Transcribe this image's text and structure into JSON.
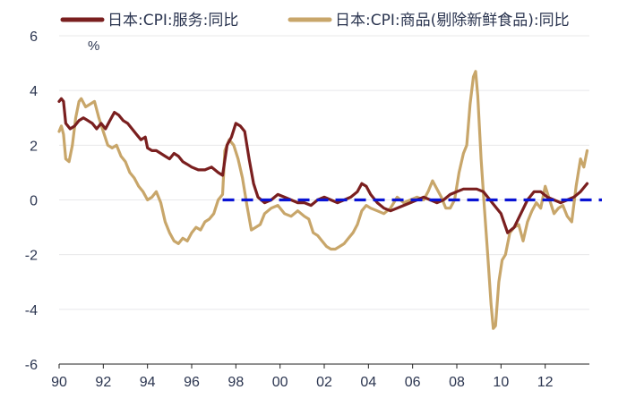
{
  "chart_data": {
    "type": "line",
    "unit_label": "%",
    "xlim": [
      1990,
      2014
    ],
    "ylim": [
      -6,
      6
    ],
    "y_ticks": [
      6,
      4,
      2,
      0,
      -2,
      -4,
      -6
    ],
    "x_tick_values": [
      1990,
      1992,
      1994,
      1996,
      1998,
      2000,
      2002,
      2004,
      2006,
      2008,
      2010,
      2012
    ],
    "x_tick_labels": [
      "90",
      "92",
      "94",
      "96",
      "98",
      "00",
      "02",
      "04",
      "06",
      "08",
      "10",
      "12"
    ],
    "grid": "horizontal",
    "legend_position": "top",
    "reference_line": {
      "y": 0,
      "x_start": 1997.4,
      "color": "#0a14d4",
      "style": "dashed"
    },
    "series": [
      {
        "name": "日本:CPI:服务:同比",
        "color": "#7a1f1f",
        "points": [
          [
            1990.0,
            3.6
          ],
          [
            1990.1,
            3.7
          ],
          [
            1990.2,
            3.6
          ],
          [
            1990.3,
            2.8
          ],
          [
            1990.5,
            2.6
          ],
          [
            1990.7,
            2.7
          ],
          [
            1990.9,
            2.9
          ],
          [
            1991.1,
            3.0
          ],
          [
            1991.3,
            2.9
          ],
          [
            1991.5,
            2.8
          ],
          [
            1991.7,
            2.6
          ],
          [
            1991.9,
            2.8
          ],
          [
            1992.1,
            2.6
          ],
          [
            1992.3,
            2.9
          ],
          [
            1992.5,
            3.2
          ],
          [
            1992.7,
            3.1
          ],
          [
            1992.9,
            2.9
          ],
          [
            1993.1,
            2.8
          ],
          [
            1993.3,
            2.6
          ],
          [
            1993.5,
            2.4
          ],
          [
            1993.7,
            2.2
          ],
          [
            1993.9,
            2.3
          ],
          [
            1994.0,
            1.9
          ],
          [
            1994.2,
            1.8
          ],
          [
            1994.4,
            1.8
          ],
          [
            1994.6,
            1.7
          ],
          [
            1994.8,
            1.6
          ],
          [
            1995.0,
            1.5
          ],
          [
            1995.2,
            1.7
          ],
          [
            1995.4,
            1.6
          ],
          [
            1995.6,
            1.4
          ],
          [
            1995.8,
            1.3
          ],
          [
            1996.0,
            1.2
          ],
          [
            1996.3,
            1.1
          ],
          [
            1996.6,
            1.1
          ],
          [
            1996.9,
            1.2
          ],
          [
            1997.2,
            1.0
          ],
          [
            1997.4,
            0.9
          ],
          [
            1997.6,
            2.0
          ],
          [
            1997.8,
            2.3
          ],
          [
            1998.0,
            2.8
          ],
          [
            1998.2,
            2.7
          ],
          [
            1998.4,
            2.5
          ],
          [
            1998.6,
            1.5
          ],
          [
            1998.8,
            0.6
          ],
          [
            1999.0,
            0.1
          ],
          [
            1999.3,
            -0.1
          ],
          [
            1999.6,
            0.0
          ],
          [
            1999.9,
            0.2
          ],
          [
            2000.2,
            0.1
          ],
          [
            2000.5,
            0.0
          ],
          [
            2000.8,
            -0.1
          ],
          [
            2001.1,
            -0.1
          ],
          [
            2001.4,
            -0.2
          ],
          [
            2001.7,
            0.0
          ],
          [
            2002.0,
            0.1
          ],
          [
            2002.3,
            0.0
          ],
          [
            2002.6,
            -0.1
          ],
          [
            2002.9,
            0.0
          ],
          [
            2003.2,
            0.1
          ],
          [
            2003.5,
            0.3
          ],
          [
            2003.7,
            0.6
          ],
          [
            2003.9,
            0.5
          ],
          [
            2004.1,
            0.2
          ],
          [
            2004.4,
            -0.1
          ],
          [
            2004.7,
            -0.3
          ],
          [
            2005.0,
            -0.4
          ],
          [
            2005.3,
            -0.3
          ],
          [
            2005.6,
            -0.2
          ],
          [
            2005.9,
            -0.1
          ],
          [
            2006.2,
            0.0
          ],
          [
            2006.5,
            0.1
          ],
          [
            2006.8,
            0.0
          ],
          [
            2007.1,
            -0.1
          ],
          [
            2007.4,
            0.0
          ],
          [
            2007.7,
            0.2
          ],
          [
            2008.0,
            0.3
          ],
          [
            2008.3,
            0.4
          ],
          [
            2008.6,
            0.4
          ],
          [
            2008.9,
            0.4
          ],
          [
            2009.2,
            0.3
          ],
          [
            2009.5,
            0.0
          ],
          [
            2009.8,
            -0.3
          ],
          [
            2010.0,
            -0.5
          ],
          [
            2010.3,
            -1.2
          ],
          [
            2010.6,
            -1.0
          ],
          [
            2010.9,
            -0.5
          ],
          [
            2011.2,
            0.0
          ],
          [
            2011.5,
            0.3
          ],
          [
            2011.8,
            0.3
          ],
          [
            2012.1,
            0.1
          ],
          [
            2012.4,
            0.0
          ],
          [
            2012.7,
            -0.1
          ],
          [
            2013.0,
            0.0
          ],
          [
            2013.3,
            0.1
          ],
          [
            2013.6,
            0.3
          ],
          [
            2013.9,
            0.6
          ]
        ]
      },
      {
        "name": "日本:CPI:商品(剔除新鲜食品):同比",
        "color": "#c8a66a",
        "points": [
          [
            1990.0,
            2.5
          ],
          [
            1990.1,
            2.7
          ],
          [
            1990.2,
            2.4
          ],
          [
            1990.3,
            1.5
          ],
          [
            1990.45,
            1.4
          ],
          [
            1990.6,
            2.0
          ],
          [
            1990.75,
            3.0
          ],
          [
            1990.9,
            3.6
          ],
          [
            1991.0,
            3.7
          ],
          [
            1991.2,
            3.4
          ],
          [
            1991.4,
            3.5
          ],
          [
            1991.6,
            3.6
          ],
          [
            1991.8,
            3.0
          ],
          [
            1992.0,
            2.5
          ],
          [
            1992.2,
            2.0
          ],
          [
            1992.4,
            1.9
          ],
          [
            1992.6,
            2.0
          ],
          [
            1992.8,
            1.6
          ],
          [
            1993.0,
            1.4
          ],
          [
            1993.2,
            1.0
          ],
          [
            1993.4,
            0.8
          ],
          [
            1993.6,
            0.5
          ],
          [
            1993.8,
            0.3
          ],
          [
            1994.0,
            0.0
          ],
          [
            1994.2,
            0.1
          ],
          [
            1994.4,
            0.3
          ],
          [
            1994.6,
            -0.1
          ],
          [
            1994.8,
            -0.8
          ],
          [
            1995.0,
            -1.2
          ],
          [
            1995.2,
            -1.5
          ],
          [
            1995.4,
            -1.6
          ],
          [
            1995.6,
            -1.4
          ],
          [
            1995.8,
            -1.5
          ],
          [
            1996.0,
            -1.2
          ],
          [
            1996.2,
            -1.0
          ],
          [
            1996.4,
            -1.1
          ],
          [
            1996.6,
            -0.8
          ],
          [
            1996.8,
            -0.7
          ],
          [
            1997.0,
            -0.5
          ],
          [
            1997.2,
            0.0
          ],
          [
            1997.4,
            0.2
          ],
          [
            1997.5,
            1.8
          ],
          [
            1997.7,
            2.2
          ],
          [
            1997.9,
            2.0
          ],
          [
            1998.1,
            1.5
          ],
          [
            1998.3,
            0.8
          ],
          [
            1998.5,
            -0.2
          ],
          [
            1998.7,
            -1.1
          ],
          [
            1998.9,
            -1.0
          ],
          [
            1999.1,
            -0.9
          ],
          [
            1999.3,
            -0.5
          ],
          [
            1999.6,
            -0.3
          ],
          [
            1999.9,
            -0.2
          ],
          [
            2000.2,
            -0.5
          ],
          [
            2000.5,
            -0.6
          ],
          [
            2000.8,
            -0.4
          ],
          [
            2001.1,
            -0.6
          ],
          [
            2001.3,
            -0.7
          ],
          [
            2001.5,
            -1.2
          ],
          [
            2001.7,
            -1.3
          ],
          [
            2001.9,
            -1.5
          ],
          [
            2002.1,
            -1.7
          ],
          [
            2002.3,
            -1.8
          ],
          [
            2002.5,
            -1.8
          ],
          [
            2002.7,
            -1.7
          ],
          [
            2002.9,
            -1.6
          ],
          [
            2003.1,
            -1.4
          ],
          [
            2003.3,
            -1.2
          ],
          [
            2003.5,
            -0.9
          ],
          [
            2003.7,
            -0.4
          ],
          [
            2003.9,
            -0.2
          ],
          [
            2004.1,
            -0.3
          ],
          [
            2004.4,
            -0.4
          ],
          [
            2004.7,
            -0.5
          ],
          [
            2005.0,
            -0.3
          ],
          [
            2005.3,
            0.1
          ],
          [
            2005.6,
            -0.1
          ],
          [
            2005.9,
            0.0
          ],
          [
            2006.2,
            0.1
          ],
          [
            2006.5,
            0.0
          ],
          [
            2006.7,
            0.3
          ],
          [
            2006.9,
            0.7
          ],
          [
            2007.1,
            0.4
          ],
          [
            2007.3,
            0.1
          ],
          [
            2007.5,
            -0.3
          ],
          [
            2007.7,
            -0.3
          ],
          [
            2007.9,
            0.0
          ],
          [
            2008.1,
            1.0
          ],
          [
            2008.3,
            1.7
          ],
          [
            2008.45,
            2.0
          ],
          [
            2008.6,
            3.5
          ],
          [
            2008.75,
            4.5
          ],
          [
            2008.85,
            4.7
          ],
          [
            2008.95,
            3.8
          ],
          [
            2009.1,
            1.5
          ],
          [
            2009.25,
            -0.3
          ],
          [
            2009.4,
            -2.0
          ],
          [
            2009.55,
            -3.8
          ],
          [
            2009.65,
            -4.7
          ],
          [
            2009.75,
            -4.6
          ],
          [
            2009.9,
            -3.0
          ],
          [
            2010.05,
            -2.2
          ],
          [
            2010.2,
            -2.0
          ],
          [
            2010.4,
            -1.2
          ],
          [
            2010.6,
            -1.0
          ],
          [
            2010.8,
            -0.9
          ],
          [
            2011.0,
            -1.5
          ],
          [
            2011.2,
            -0.8
          ],
          [
            2011.4,
            -0.4
          ],
          [
            2011.6,
            -0.1
          ],
          [
            2011.8,
            -0.3
          ],
          [
            2012.0,
            0.5
          ],
          [
            2012.2,
            0.0
          ],
          [
            2012.4,
            -0.5
          ],
          [
            2012.6,
            -0.3
          ],
          [
            2012.8,
            -0.2
          ],
          [
            2013.0,
            -0.6
          ],
          [
            2013.2,
            -0.8
          ],
          [
            2013.4,
            0.5
          ],
          [
            2013.6,
            1.5
          ],
          [
            2013.75,
            1.2
          ],
          [
            2013.9,
            1.8
          ]
        ]
      }
    ]
  }
}
